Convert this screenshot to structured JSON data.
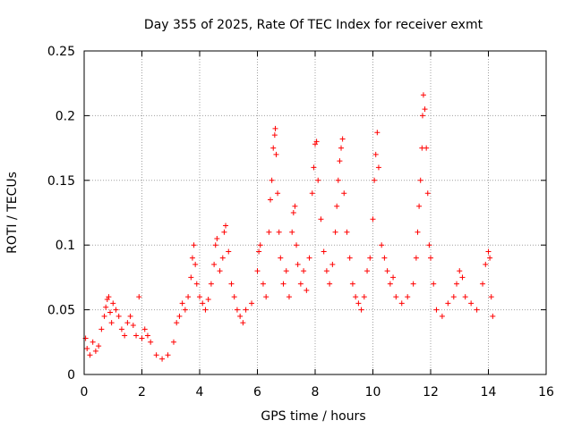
{
  "chart_data": {
    "type": "scatter",
    "title": "Day 355 of 2025, Rate Of TEC Index for receiver exmt",
    "xlabel": "GPS time / hours",
    "ylabel": "ROTI / TECUs",
    "xlim": [
      0,
      16
    ],
    "ylim": [
      0,
      0.25
    ],
    "x_ticks": [
      0,
      2,
      4,
      6,
      8,
      10,
      12,
      14,
      16
    ],
    "x_tick_labels": [
      "0",
      "2",
      "4",
      "6",
      "8",
      "10",
      "12",
      "14",
      "16"
    ],
    "y_ticks": [
      0,
      0.05,
      0.1,
      0.15,
      0.2,
      0.25
    ],
    "y_tick_labels": [
      "0",
      "0.05",
      "0.1",
      "0.15",
      "0.2",
      "0.25"
    ],
    "grid": true,
    "marker": "+",
    "color": "#ff0000",
    "series": [
      {
        "name": "ROTI",
        "points": [
          [
            0.05,
            0.028
          ],
          [
            0.1,
            0.02
          ],
          [
            0.2,
            0.015
          ],
          [
            0.3,
            0.025
          ],
          [
            0.4,
            0.018
          ],
          [
            0.5,
            0.022
          ],
          [
            0.6,
            0.035
          ],
          [
            0.7,
            0.045
          ],
          [
            0.75,
            0.052
          ],
          [
            0.8,
            0.058
          ],
          [
            0.85,
            0.06
          ],
          [
            0.9,
            0.048
          ],
          [
            0.95,
            0.04
          ],
          [
            1.0,
            0.055
          ],
          [
            1.1,
            0.05
          ],
          [
            1.2,
            0.045
          ],
          [
            1.3,
            0.035
          ],
          [
            1.4,
            0.03
          ],
          [
            1.5,
            0.04
          ],
          [
            1.6,
            0.045
          ],
          [
            1.7,
            0.038
          ],
          [
            1.8,
            0.03
          ],
          [
            1.9,
            0.06
          ],
          [
            2.0,
            0.028
          ],
          [
            2.1,
            0.035
          ],
          [
            2.2,
            0.03
          ],
          [
            2.3,
            0.025
          ],
          [
            2.5,
            0.015
          ],
          [
            2.7,
            0.012
          ],
          [
            2.9,
            0.015
          ],
          [
            3.1,
            0.025
          ],
          [
            3.2,
            0.04
          ],
          [
            3.3,
            0.045
          ],
          [
            3.4,
            0.055
          ],
          [
            3.5,
            0.05
          ],
          [
            3.6,
            0.06
          ],
          [
            3.7,
            0.075
          ],
          [
            3.75,
            0.09
          ],
          [
            3.8,
            0.1
          ],
          [
            3.85,
            0.085
          ],
          [
            3.9,
            0.07
          ],
          [
            4.0,
            0.06
          ],
          [
            4.1,
            0.055
          ],
          [
            4.2,
            0.05
          ],
          [
            4.3,
            0.058
          ],
          [
            4.4,
            0.07
          ],
          [
            4.5,
            0.085
          ],
          [
            4.55,
            0.1
          ],
          [
            4.6,
            0.105
          ],
          [
            4.7,
            0.08
          ],
          [
            4.8,
            0.09
          ],
          [
            4.85,
            0.11
          ],
          [
            4.9,
            0.115
          ],
          [
            5.0,
            0.095
          ],
          [
            5.1,
            0.07
          ],
          [
            5.2,
            0.06
          ],
          [
            5.3,
            0.05
          ],
          [
            5.4,
            0.045
          ],
          [
            5.5,
            0.04
          ],
          [
            5.6,
            0.05
          ],
          [
            5.8,
            0.055
          ],
          [
            6.0,
            0.08
          ],
          [
            6.05,
            0.095
          ],
          [
            6.1,
            0.1
          ],
          [
            6.2,
            0.07
          ],
          [
            6.3,
            0.06
          ],
          [
            6.4,
            0.11
          ],
          [
            6.45,
            0.135
          ],
          [
            6.5,
            0.15
          ],
          [
            6.55,
            0.175
          ],
          [
            6.6,
            0.185
          ],
          [
            6.62,
            0.19
          ],
          [
            6.65,
            0.17
          ],
          [
            6.7,
            0.14
          ],
          [
            6.75,
            0.11
          ],
          [
            6.8,
            0.09
          ],
          [
            6.9,
            0.07
          ],
          [
            7.0,
            0.08
          ],
          [
            7.1,
            0.06
          ],
          [
            7.2,
            0.11
          ],
          [
            7.25,
            0.125
          ],
          [
            7.3,
            0.13
          ],
          [
            7.35,
            0.1
          ],
          [
            7.4,
            0.085
          ],
          [
            7.5,
            0.07
          ],
          [
            7.6,
            0.08
          ],
          [
            7.7,
            0.065
          ],
          [
            7.8,
            0.09
          ],
          [
            7.9,
            0.14
          ],
          [
            7.95,
            0.16
          ],
          [
            8.0,
            0.178
          ],
          [
            8.05,
            0.18
          ],
          [
            8.1,
            0.15
          ],
          [
            8.2,
            0.12
          ],
          [
            8.3,
            0.095
          ],
          [
            8.4,
            0.08
          ],
          [
            8.5,
            0.07
          ],
          [
            8.6,
            0.085
          ],
          [
            8.7,
            0.11
          ],
          [
            8.75,
            0.13
          ],
          [
            8.8,
            0.15
          ],
          [
            8.85,
            0.165
          ],
          [
            8.9,
            0.175
          ],
          [
            8.95,
            0.182
          ],
          [
            9.0,
            0.14
          ],
          [
            9.1,
            0.11
          ],
          [
            9.2,
            0.09
          ],
          [
            9.3,
            0.07
          ],
          [
            9.4,
            0.06
          ],
          [
            9.5,
            0.055
          ],
          [
            9.6,
            0.05
          ],
          [
            9.7,
            0.06
          ],
          [
            9.8,
            0.08
          ],
          [
            9.9,
            0.09
          ],
          [
            10.0,
            0.12
          ],
          [
            10.05,
            0.15
          ],
          [
            10.1,
            0.17
          ],
          [
            10.15,
            0.187
          ],
          [
            10.2,
            0.16
          ],
          [
            10.3,
            0.1
          ],
          [
            10.4,
            0.09
          ],
          [
            10.5,
            0.08
          ],
          [
            10.6,
            0.07
          ],
          [
            10.7,
            0.075
          ],
          [
            10.8,
            0.06
          ],
          [
            11.0,
            0.055
          ],
          [
            11.2,
            0.06
          ],
          [
            11.4,
            0.07
          ],
          [
            11.5,
            0.09
          ],
          [
            11.55,
            0.11
          ],
          [
            11.6,
            0.13
          ],
          [
            11.65,
            0.15
          ],
          [
            11.7,
            0.175
          ],
          [
            11.72,
            0.2
          ],
          [
            11.75,
            0.216
          ],
          [
            11.8,
            0.205
          ],
          [
            11.85,
            0.175
          ],
          [
            11.9,
            0.14
          ],
          [
            11.95,
            0.1
          ],
          [
            12.0,
            0.09
          ],
          [
            12.1,
            0.07
          ],
          [
            12.2,
            0.05
          ],
          [
            12.4,
            0.045
          ],
          [
            12.6,
            0.055
          ],
          [
            12.8,
            0.06
          ],
          [
            12.9,
            0.07
          ],
          [
            13.0,
            0.08
          ],
          [
            13.1,
            0.075
          ],
          [
            13.2,
            0.06
          ],
          [
            13.4,
            0.055
          ],
          [
            13.6,
            0.05
          ],
          [
            13.8,
            0.07
          ],
          [
            13.9,
            0.085
          ],
          [
            14.0,
            0.095
          ],
          [
            14.05,
            0.09
          ],
          [
            14.1,
            0.06
          ],
          [
            14.15,
            0.045
          ]
        ]
      }
    ]
  }
}
